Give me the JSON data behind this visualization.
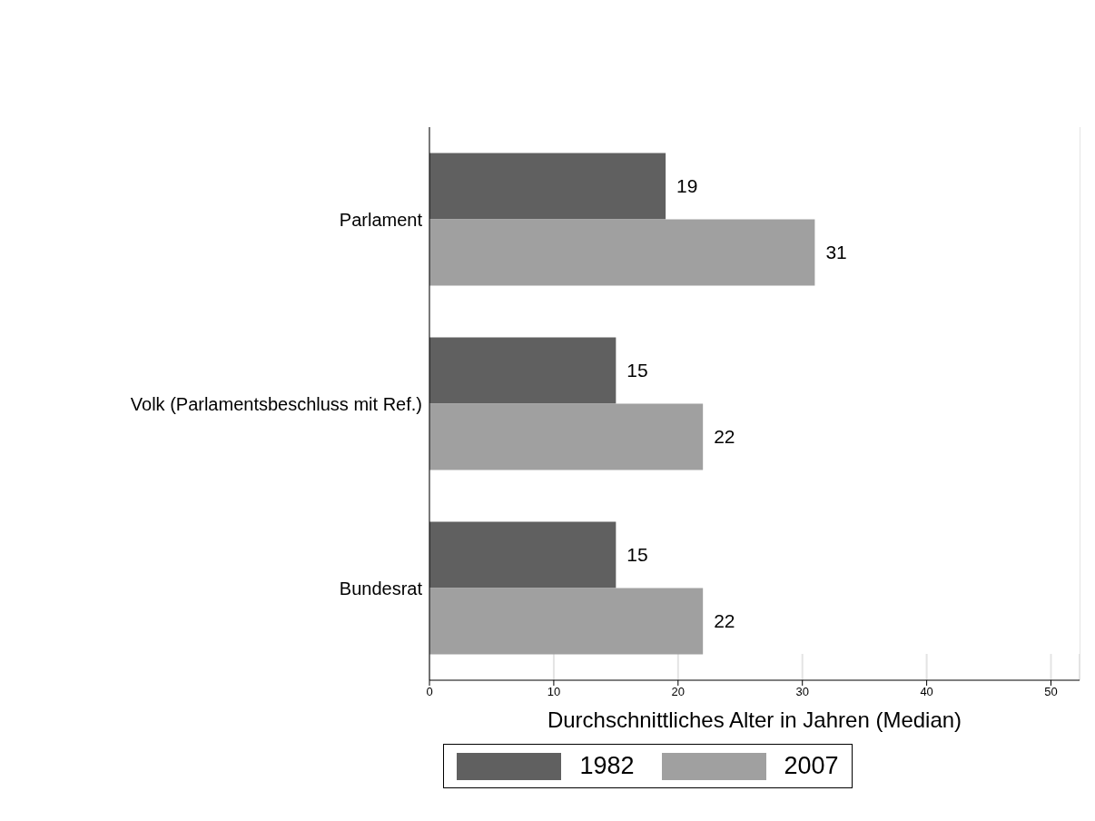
{
  "chart_data": {
    "type": "bar",
    "orientation": "horizontal",
    "xlabel": "Durchschnittliches Alter in Jahren (Median)",
    "categories": [
      "Parlament",
      "Volk (Parlamentsbeschluss mit Ref.)",
      "Bundesrat"
    ],
    "series": [
      {
        "name": "1982",
        "color": "#606060",
        "values": [
          19,
          15,
          15
        ]
      },
      {
        "name": "2007",
        "color": "#a0a0a0",
        "values": [
          31,
          22,
          22
        ]
      }
    ],
    "xlim": [
      0,
      52.3
    ],
    "xticks": [
      0,
      10,
      20,
      30,
      40,
      50
    ],
    "grid": "x",
    "legend": "bottom",
    "data_labels": true
  }
}
